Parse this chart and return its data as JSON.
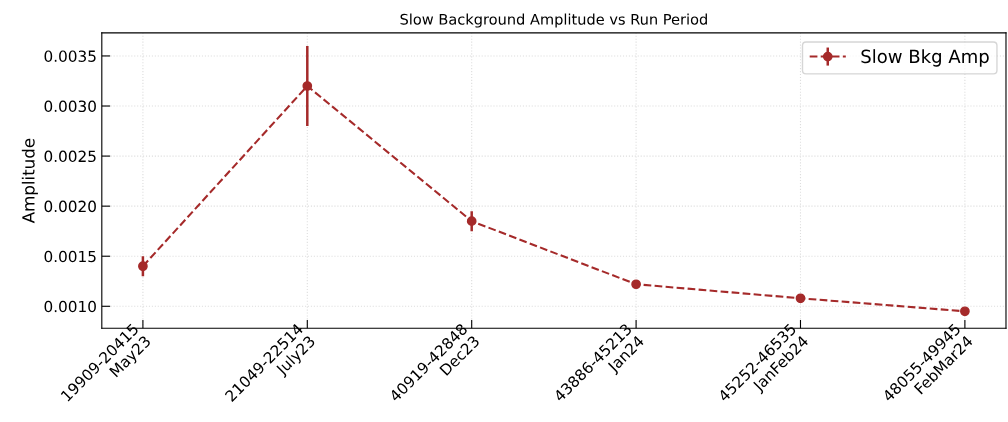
{
  "chart_data": {
    "type": "line",
    "title": "Slow Background Amplitude vs Run Period",
    "ylabel": "Amplitude",
    "categories": [
      "19909-20415\nMay23",
      "21049-22514\nJuly23",
      "40919-42848\nDec23",
      "43886-45213\nJan24",
      "45252-46535\nJanFeb24",
      "48055-49945\nFebMar24"
    ],
    "series": [
      {
        "name": "Slow Bkg Amp",
        "color": "#a52a2a",
        "values": [
          0.0014,
          0.0032,
          0.00185,
          0.00122,
          0.00108,
          0.00095
        ],
        "errors": [
          0.0001,
          0.0004,
          0.0001,
          null,
          null,
          null
        ]
      }
    ],
    "ylim": [
      0.00078,
      0.00373
    ],
    "yticks": [
      {
        "value": 0.001,
        "label": "0.0010"
      },
      {
        "value": 0.0015,
        "label": "0.0015"
      },
      {
        "value": 0.002,
        "label": "0.0020"
      },
      {
        "value": 0.0025,
        "label": "0.0025"
      },
      {
        "value": 0.003,
        "label": "0.0030"
      },
      {
        "value": 0.0035,
        "label": "0.0035"
      }
    ],
    "grid": true,
    "legend": "top right",
    "marker": "circle",
    "line_style": "dashed"
  }
}
